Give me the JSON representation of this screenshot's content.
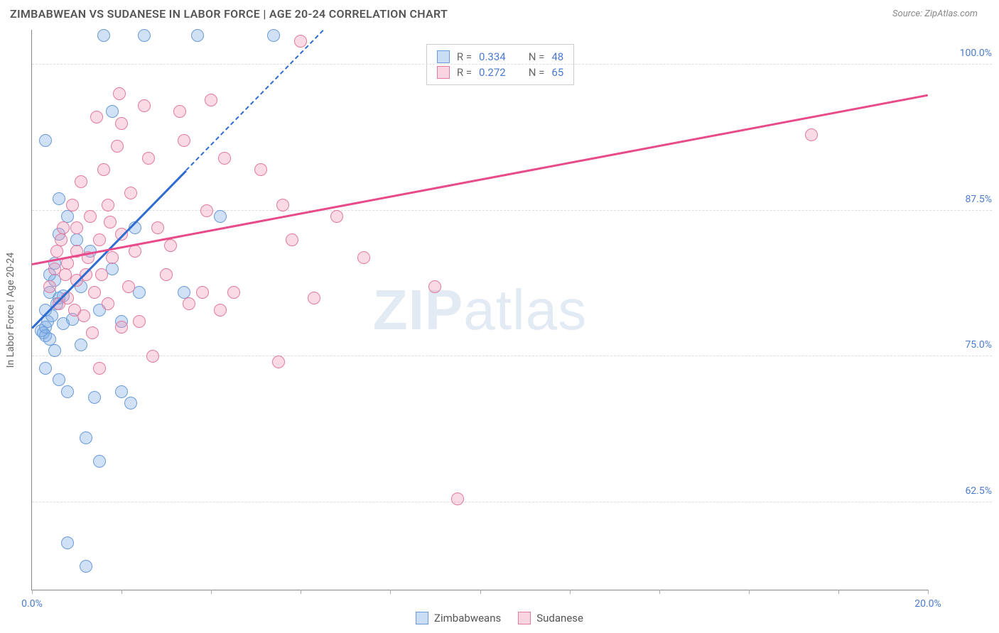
{
  "header": {
    "title": "ZIMBABWEAN VS SUDANESE IN LABOR FORCE | AGE 20-24 CORRELATION CHART",
    "source": "Source: ZipAtlas.com"
  },
  "chart": {
    "type": "scatter",
    "y_axis_label": "In Labor Force | Age 20-24",
    "x_range": [
      0,
      20
    ],
    "y_range": [
      55,
      103
    ],
    "x_ticks": [
      0,
      2,
      4,
      6,
      8,
      10,
      12,
      14,
      16,
      18,
      20
    ],
    "x_tick_labels": {
      "0": "0.0%",
      "20": "20.0%"
    },
    "y_gridlines": [
      62.5,
      75.0,
      87.5,
      100.0
    ],
    "y_tick_labels": [
      "62.5%",
      "75.0%",
      "87.5%",
      "100.0%"
    ],
    "grid_color": "#dddddd",
    "axis_color": "#888888",
    "background_color": "#ffffff",
    "tick_label_color": "#4a7bd0",
    "axis_label_color": "#666666",
    "marker_radius": 9,
    "series": [
      {
        "name": "Zimbabweans",
        "color_fill": "rgba(120,170,230,0.35)",
        "color_stroke": "#6a9bd8",
        "R": "0.334",
        "N": "48",
        "trend": {
          "x1": 0,
          "y1": 77.5,
          "x2": 6.5,
          "y2": 103,
          "color": "#2d6bd0",
          "dashed_extension": true
        },
        "points": [
          [
            0.2,
            77.2
          ],
          [
            0.25,
            77.0
          ],
          [
            0.3,
            77.5
          ],
          [
            0.3,
            76.8
          ],
          [
            0.4,
            76.5
          ],
          [
            0.35,
            78
          ],
          [
            0.3,
            79
          ],
          [
            0.4,
            82
          ],
          [
            0.5,
            83
          ],
          [
            0.6,
            80
          ],
          [
            0.5,
            75.5
          ],
          [
            0.3,
            74
          ],
          [
            0.6,
            73
          ],
          [
            0.8,
            72
          ],
          [
            1.2,
            68
          ],
          [
            1.4,
            71.5
          ],
          [
            2.0,
            72
          ],
          [
            2.2,
            71
          ],
          [
            1.5,
            66
          ],
          [
            0.8,
            59
          ],
          [
            1.2,
            57
          ],
          [
            0.6,
            88.5
          ],
          [
            0.3,
            93.5
          ],
          [
            0.8,
            87
          ],
          [
            1.0,
            85
          ],
          [
            1.3,
            84
          ],
          [
            1.8,
            82.5
          ],
          [
            1.5,
            79
          ],
          [
            2.0,
            78
          ],
          [
            2.3,
            86
          ],
          [
            0.4,
            80.5
          ],
          [
            0.5,
            81.5
          ],
          [
            1.6,
            102.5
          ],
          [
            2.5,
            102.5
          ],
          [
            3.7,
            102.5
          ],
          [
            5.4,
            102.5
          ],
          [
            1.8,
            96
          ],
          [
            2.4,
            80.5
          ],
          [
            3.4,
            80.5
          ],
          [
            4.2,
            87
          ],
          [
            0.6,
            85.5
          ],
          [
            1.1,
            81
          ],
          [
            0.7,
            77.8
          ],
          [
            0.9,
            78.2
          ],
          [
            1.1,
            76
          ],
          [
            0.45,
            78.5
          ],
          [
            0.55,
            79.5
          ],
          [
            0.7,
            80.2
          ]
        ]
      },
      {
        "name": "Sudanese",
        "color_fill": "rgba(240,150,180,0.35)",
        "color_stroke": "#e27aa0",
        "R": "0.272",
        "N": "65",
        "trend": {
          "x1": 0,
          "y1": 83,
          "x2": 20,
          "y2": 97.5,
          "color": "#e84b8a",
          "dashed_extension": false
        },
        "points": [
          [
            0.5,
            82.5
          ],
          [
            0.8,
            83
          ],
          [
            1.0,
            84
          ],
          [
            1.2,
            82
          ],
          [
            1.5,
            85
          ],
          [
            1.8,
            83.5
          ],
          [
            1.0,
            86
          ],
          [
            1.3,
            87
          ],
          [
            1.7,
            88
          ],
          [
            2.0,
            85.5
          ],
          [
            2.3,
            84
          ],
          [
            2.0,
            95
          ],
          [
            2.5,
            96.5
          ],
          [
            3.3,
            96
          ],
          [
            4.0,
            97
          ],
          [
            3.4,
            93.5
          ],
          [
            4.3,
            92
          ],
          [
            5.1,
            91
          ],
          [
            5.6,
            88
          ],
          [
            5.8,
            85
          ],
          [
            6.8,
            87
          ],
          [
            7.4,
            83.5
          ],
          [
            6.0,
            102
          ],
          [
            6.3,
            80
          ],
          [
            4.5,
            80.5
          ],
          [
            3.8,
            80.5
          ],
          [
            3.0,
            82
          ],
          [
            3.5,
            79.5
          ],
          [
            4.2,
            79
          ],
          [
            2.8,
            86
          ],
          [
            2.2,
            89
          ],
          [
            1.6,
            91
          ],
          [
            1.9,
            93
          ],
          [
            1.1,
            90
          ],
          [
            0.9,
            88
          ],
          [
            0.7,
            86
          ],
          [
            1.4,
            80.5
          ],
          [
            1.7,
            79.5
          ],
          [
            2.0,
            77.5
          ],
          [
            2.4,
            78
          ],
          [
            2.7,
            75
          ],
          [
            1.5,
            74
          ],
          [
            5.5,
            74.5
          ],
          [
            9.0,
            81
          ],
          [
            9.5,
            62.8
          ],
          [
            17.4,
            94
          ],
          [
            0.6,
            79.5
          ],
          [
            0.8,
            80
          ],
          [
            1.0,
            81.5
          ],
          [
            1.15,
            78.5
          ],
          [
            1.35,
            77
          ],
          [
            0.55,
            84
          ],
          [
            0.65,
            85
          ],
          [
            0.4,
            81
          ],
          [
            0.95,
            79
          ],
          [
            1.25,
            83.5
          ],
          [
            1.55,
            82
          ],
          [
            2.15,
            81
          ],
          [
            1.75,
            86.5
          ],
          [
            0.75,
            82
          ],
          [
            3.1,
            84.5
          ],
          [
            3.9,
            87.5
          ],
          [
            2.6,
            92
          ],
          [
            1.95,
            97.5
          ],
          [
            1.45,
            95.5
          ]
        ]
      }
    ],
    "stats_box": {
      "rows": [
        {
          "swatch": "blue",
          "r_val": "0.334",
          "n_val": "48"
        },
        {
          "swatch": "pink",
          "r_val": "0.272",
          "n_val": "65"
        }
      ]
    },
    "legend_bottom": [
      {
        "swatch": "blue",
        "label": "Zimbabweans"
      },
      {
        "swatch": "pink",
        "label": "Sudanese"
      }
    ],
    "watermark": {
      "bold": "ZIP",
      "rest": "atlas"
    }
  }
}
